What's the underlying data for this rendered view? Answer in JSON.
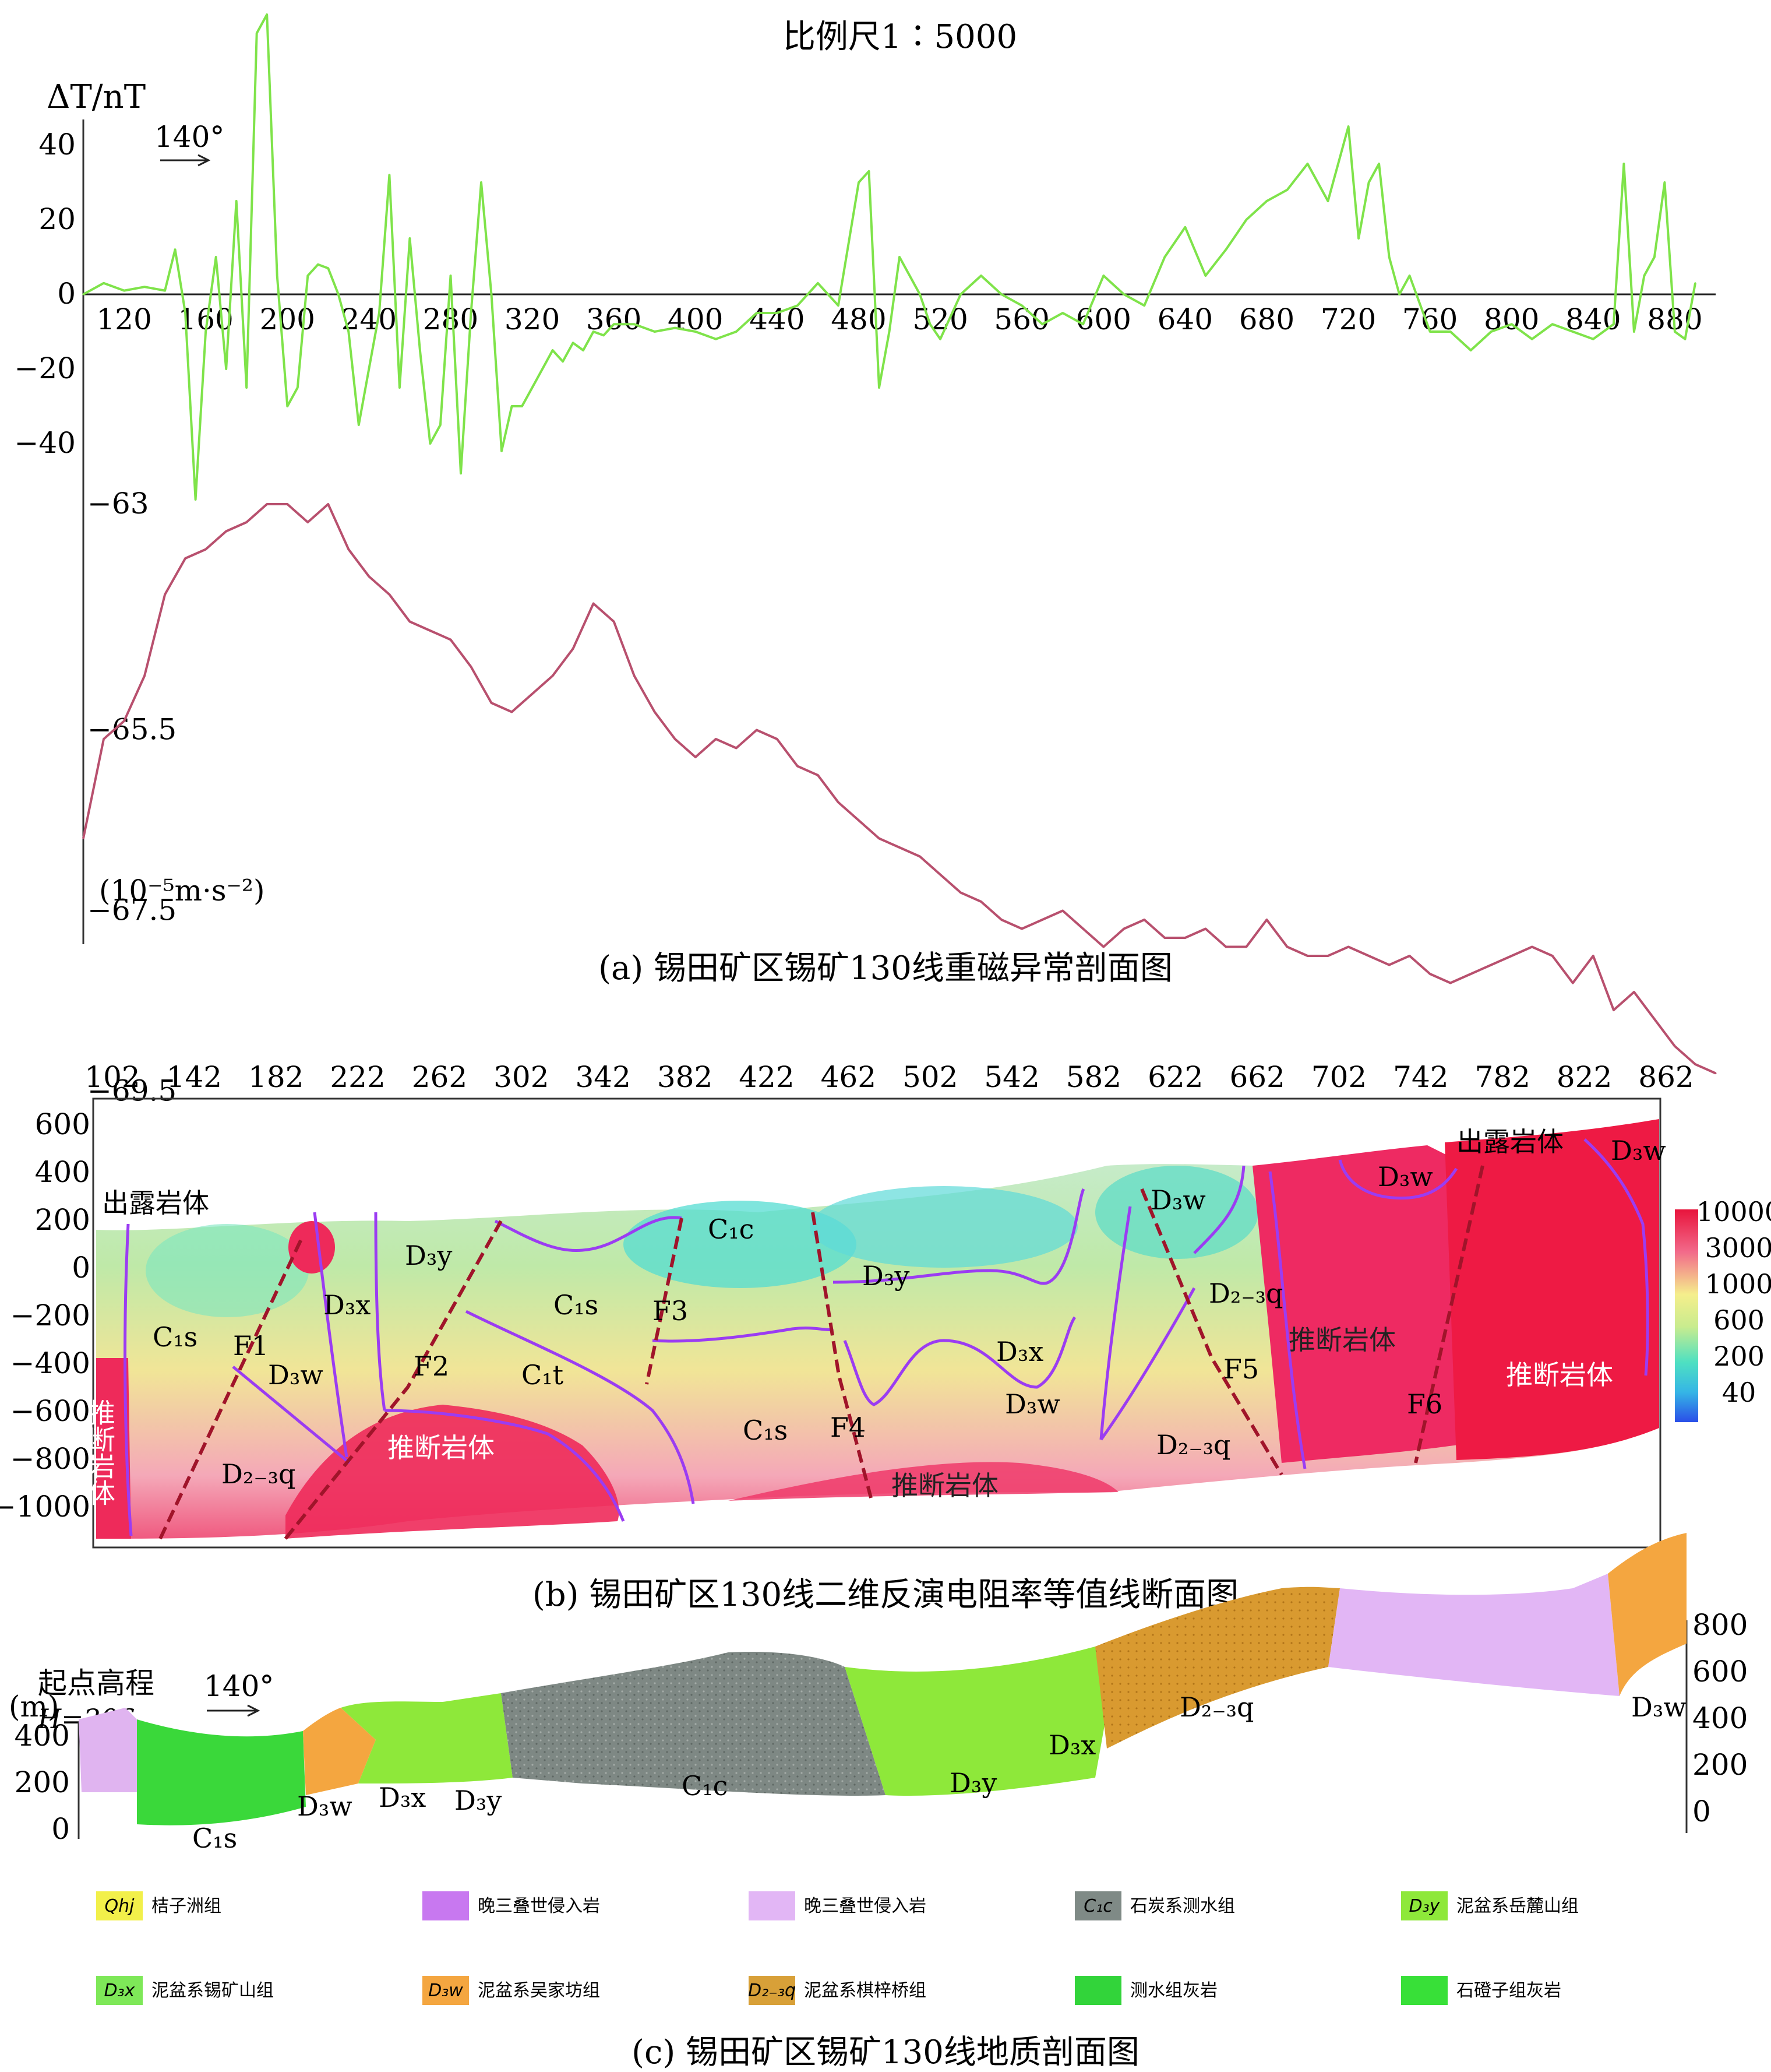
{
  "panel_a": {
    "scale_text": "比例尺1∶5000",
    "ylabel": "ΔT/nT",
    "direction": "140°",
    "mag_yticks": [
      "40",
      "20",
      "0",
      "−20",
      "−40"
    ],
    "grav_yticks": [
      "−63",
      "−65.5",
      "−67.5",
      "−69.5"
    ],
    "grav_unit": "(10⁻⁵m·s⁻²)",
    "xticks": [
      "120",
      "160",
      "200",
      "240",
      "280",
      "320",
      "360",
      "400",
      "440",
      "480",
      "520",
      "560",
      "600",
      "640",
      "680",
      "720",
      "760",
      "800",
      "840",
      "880"
    ],
    "caption": "(a) 锡田矿区锡矿130线重磁异常剖面图"
  },
  "panel_b": {
    "xticks": [
      "102",
      "142",
      "182",
      "222",
      "262",
      "302",
      "342",
      "382",
      "422",
      "462",
      "502",
      "542",
      "582",
      "622",
      "662",
      "702",
      "742",
      "782",
      "822",
      "862"
    ],
    "yticks": [
      "600",
      "400",
      "200",
      "0",
      "−200",
      "−400",
      "−600",
      "−800",
      "−1000"
    ],
    "colorbar": [
      "10000",
      "3000",
      "1000",
      "600",
      "200",
      "40"
    ],
    "labels": {
      "exposed_left": "出露岩体",
      "exposed_right": "出露岩体",
      "inferred_left": "推断岩体",
      "inferred": "推断岩体",
      "c1s": "C₁s",
      "c1t": "C₁t",
      "c1c": "C₁c",
      "d3y": "D₃y",
      "d3x": "D₃x",
      "d3w": "D₃w",
      "d23q": "D₂₋₃q",
      "f1": "F1",
      "f2": "F2",
      "f3": "F3",
      "f4": "F4",
      "f5": "F5",
      "f6": "F6"
    },
    "caption": "(b) 锡田矿区130线二维反演电阻率等值线断面图"
  },
  "panel_c": {
    "unit": "(m)",
    "start_elev": "起点高程",
    "start_h": "H=206",
    "direction": "140°",
    "left_ticks": [
      "400",
      "200",
      "0"
    ],
    "right_ticks": [
      "800",
      "600",
      "400",
      "200",
      "0"
    ],
    "labels": {
      "c1s": "C₁s",
      "d3w": "D₃w",
      "d3x": "D₃x",
      "d3y": "D₃y",
      "c1c": "C₁c",
      "d23q": "D₂₋₃q"
    },
    "legend": [
      {
        "code": "Qhj",
        "text": "桔子洲组",
        "color": "#f2f04a"
      },
      {
        "code": "",
        "text": "晚三叠世侵入岩",
        "color": "#c878f0"
      },
      {
        "code": "",
        "text": "晚三叠世侵入岩",
        "color": "#e2b6f5"
      },
      {
        "code": "C₁c",
        "text": "石炭系测水组",
        "color": "#7f8a86"
      },
      {
        "code": "D₃y",
        "text": "泥盆系岳麓山组",
        "color": "#8ee83a"
      },
      {
        "code": "D₃x",
        "text": "泥盆系锡矿山组",
        "color": "#7ee858"
      },
      {
        "code": "D₃w",
        "text": "泥盆系吴家坊组",
        "color": "#f4a640"
      },
      {
        "code": "D₂₋₃q",
        "text": "泥盆系棋梓桥组",
        "color": "#d8a038"
      },
      {
        "code": "",
        "text": "测水组灰岩",
        "color": "#32d43a"
      },
      {
        "code": "",
        "text": "石磴子组灰岩",
        "color": "#38e038"
      }
    ],
    "caption": "(c) 锡田矿区锡矿130线地质剖面图"
  },
  "chart_data": [
    {
      "type": "line",
      "title": "比例尺1∶5000",
      "ylabel": "ΔT/nT",
      "xlim": [
        100,
        900
      ],
      "ylim": [
        -55,
        75
      ],
      "series": [
        {
          "name": "ΔT",
          "color": "#7fe34a",
          "x": [
            100,
            110,
            120,
            130,
            140,
            145,
            150,
            155,
            160,
            165,
            170,
            175,
            180,
            185,
            190,
            195,
            200,
            205,
            210,
            215,
            220,
            225,
            230,
            235,
            240,
            245,
            250,
            255,
            260,
            265,
            270,
            275,
            280,
            285,
            290,
            295,
            300,
            305,
            310,
            315,
            320,
            325,
            330,
            335,
            340,
            345,
            350,
            355,
            360,
            370,
            380,
            390,
            400,
            410,
            420,
            430,
            440,
            450,
            460,
            470,
            480,
            485,
            490,
            495,
            500,
            505,
            510,
            515,
            520,
            530,
            540,
            550,
            560,
            570,
            580,
            590,
            600,
            610,
            620,
            630,
            640,
            650,
            660,
            670,
            680,
            690,
            700,
            710,
            720,
            725,
            730,
            735,
            740,
            745,
            750,
            760,
            770,
            780,
            790,
            800,
            810,
            820,
            830,
            840,
            850,
            855,
            860,
            865,
            870,
            875,
            880,
            885,
            890
          ],
          "y": [
            0,
            3,
            1,
            2,
            1,
            12,
            -5,
            -55,
            -10,
            10,
            -20,
            25,
            -25,
            70,
            75,
            5,
            -30,
            -25,
            5,
            8,
            7,
            0,
            -10,
            -35,
            -20,
            -5,
            32,
            -25,
            15,
            -15,
            -40,
            -35,
            5,
            -48,
            -5,
            30,
            0,
            -42,
            -30,
            -30,
            -25,
            -20,
            -15,
            -18,
            -13,
            -15,
            -10,
            -11,
            -8,
            -8,
            -10,
            -9,
            -10,
            -12,
            -10,
            -5,
            -5,
            -3,
            3,
            -3,
            30,
            33,
            -25,
            -10,
            10,
            5,
            0,
            -8,
            -12,
            0,
            5,
            0,
            -3,
            -8,
            -5,
            -8,
            5,
            0,
            -3,
            10,
            18,
            5,
            12,
            20,
            25,
            28,
            35,
            25,
            45,
            15,
            30,
            35,
            10,
            0,
            5,
            -10,
            -10,
            -15,
            -10,
            -8,
            -12,
            -8,
            -10,
            -12,
            -8,
            35,
            -10,
            5,
            10,
            30,
            -10,
            -12,
            3
          ]
        }
      ]
    },
    {
      "type": "line",
      "ylabel": "(10⁻⁵m·s⁻²)",
      "xlim": [
        100,
        900
      ],
      "ylim": [
        -70.5,
        -62.5
      ],
      "series": [
        {
          "name": "gravity",
          "color": "#b8506e",
          "x": [
            100,
            110,
            120,
            130,
            140,
            150,
            160,
            170,
            180,
            190,
            200,
            210,
            220,
            230,
            240,
            250,
            260,
            270,
            280,
            290,
            300,
            310,
            320,
            330,
            340,
            350,
            360,
            370,
            380,
            390,
            400,
            410,
            420,
            430,
            440,
            450,
            460,
            470,
            480,
            490,
            500,
            510,
            520,
            530,
            540,
            550,
            560,
            570,
            580,
            590,
            600,
            610,
            620,
            630,
            640,
            650,
            660,
            670,
            680,
            690,
            700,
            710,
            720,
            730,
            740,
            750,
            760,
            770,
            780,
            790,
            800,
            810,
            820,
            830,
            840,
            850,
            860,
            870,
            880,
            890,
            900
          ],
          "y": [
            -66.7,
            -65.6,
            -65.4,
            -64.9,
            -64.0,
            -63.6,
            -63.5,
            -63.3,
            -63.2,
            -63.0,
            -63.0,
            -63.2,
            -63.0,
            -63.5,
            -63.8,
            -64.0,
            -64.3,
            -64.4,
            -64.5,
            -64.8,
            -65.2,
            -65.3,
            -65.1,
            -64.9,
            -64.6,
            -64.1,
            -64.3,
            -64.9,
            -65.3,
            -65.6,
            -65.8,
            -65.6,
            -65.7,
            -65.5,
            -65.6,
            -65.9,
            -66.0,
            -66.3,
            -66.5,
            -66.7,
            -66.8,
            -66.9,
            -67.1,
            -67.3,
            -67.4,
            -67.6,
            -67.7,
            -67.6,
            -67.5,
            -67.7,
            -67.9,
            -67.7,
            -67.6,
            -67.8,
            -67.8,
            -67.7,
            -67.9,
            -67.9,
            -67.6,
            -67.9,
            -68.0,
            -68.0,
            -67.9,
            -68.0,
            -68.1,
            -68.0,
            -68.2,
            -68.3,
            -68.2,
            -68.1,
            -68.0,
            -67.9,
            -68.0,
            -68.3,
            -68.0,
            -68.6,
            -68.4,
            -68.7,
            -69.0,
            -69.2,
            -69.3
          ]
        }
      ]
    }
  ]
}
